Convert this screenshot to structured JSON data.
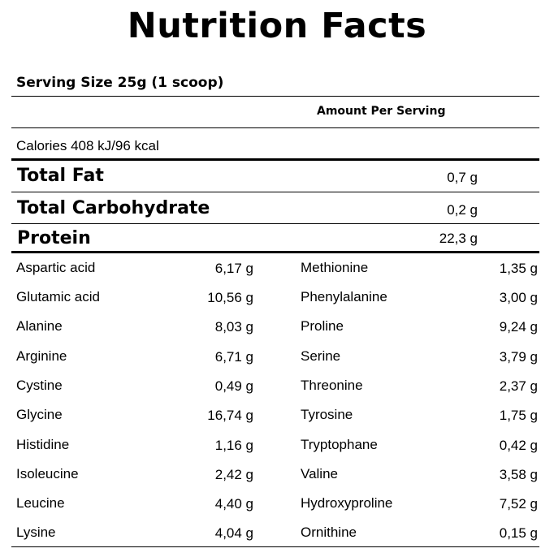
{
  "title": "Nutrition Facts",
  "serving_size": "Serving Size 25g (1 scoop)",
  "amount_per_serving": "Amount Per Serving",
  "calories": "Calories 408 kJ/96 kcal",
  "macros": [
    {
      "name": "Total Fat",
      "value": "0,7 g"
    },
    {
      "name": "Total Carbohydrate",
      "value": "0,2 g"
    },
    {
      "name": "Protein",
      "value": "22,3 g"
    }
  ],
  "amino_acids_left": [
    {
      "name": "Aspartic acid",
      "value": "6,17 g"
    },
    {
      "name": "Glutamic acid",
      "value": "10,56 g"
    },
    {
      "name": "Alanine",
      "value": "8,03 g"
    },
    {
      "name": "Arginine",
      "value": "6,71 g"
    },
    {
      "name": "Cystine",
      "value": "0,49 g"
    },
    {
      "name": "Glycine",
      "value": "16,74 g"
    },
    {
      "name": "Histidine",
      "value": "1,16 g"
    },
    {
      "name": "Isoleucine",
      "value": "2,42 g"
    },
    {
      "name": "Leucine",
      "value": "4,40 g"
    },
    {
      "name": "Lysine",
      "value": "4,04 g"
    }
  ],
  "amino_acids_right": [
    {
      "name": "Methionine",
      "value": "1,35 g"
    },
    {
      "name": "Phenylalanine",
      "value": "3,00 g"
    },
    {
      "name": "Proline",
      "value": "9,24 g"
    },
    {
      "name": "Serine",
      "value": "3,79 g"
    },
    {
      "name": "Threonine",
      "value": "2,37 g"
    },
    {
      "name": "Tyrosine",
      "value": "1,75 g"
    },
    {
      "name": "Tryptophane",
      "value": "0,42 g"
    },
    {
      "name": "Valine",
      "value": "3,58 g"
    },
    {
      "name": "Hydroxyproline",
      "value": "7,52 g"
    },
    {
      "name": "Ornithine",
      "value": "0,15 g"
    }
  ]
}
